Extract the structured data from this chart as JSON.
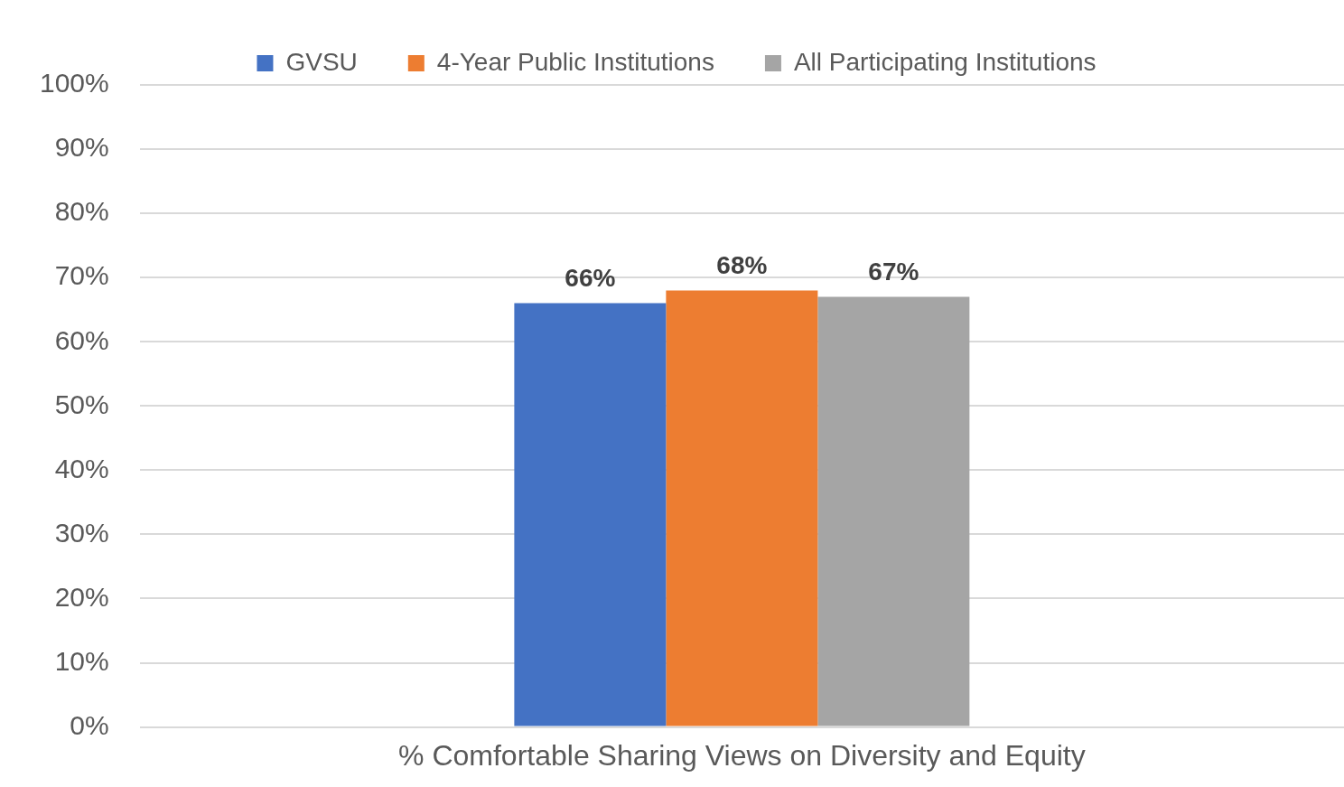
{
  "chart_data": {
    "type": "bar",
    "categories": [
      "% Comfortable Sharing Views on Diversity and Equity"
    ],
    "series": [
      {
        "name": "GVSU",
        "color": "#4472c4",
        "values": [
          66
        ],
        "value_labels": [
          "66%"
        ]
      },
      {
        "name": "4-Year Public Institutions",
        "color": "#ed7d31",
        "values": [
          68
        ],
        "value_labels": [
          "68%"
        ]
      },
      {
        "name": "All Participating Institutions",
        "color": "#a5a5a5",
        "values": [
          67
        ],
        "value_labels": [
          "67%"
        ]
      }
    ],
    "ylim": [
      0,
      100
    ],
    "yticks": [
      {
        "value": 0,
        "label": "0%"
      },
      {
        "value": 10,
        "label": "10%"
      },
      {
        "value": 20,
        "label": "20%"
      },
      {
        "value": 30,
        "label": "30%"
      },
      {
        "value": 40,
        "label": "40%"
      },
      {
        "value": 50,
        "label": "50%"
      },
      {
        "value": 60,
        "label": "60%"
      },
      {
        "value": 70,
        "label": "70%"
      },
      {
        "value": 80,
        "label": "80%"
      },
      {
        "value": 90,
        "label": "90%"
      },
      {
        "value": 100,
        "label": "100%"
      }
    ],
    "grid": "y",
    "legend": "top"
  }
}
